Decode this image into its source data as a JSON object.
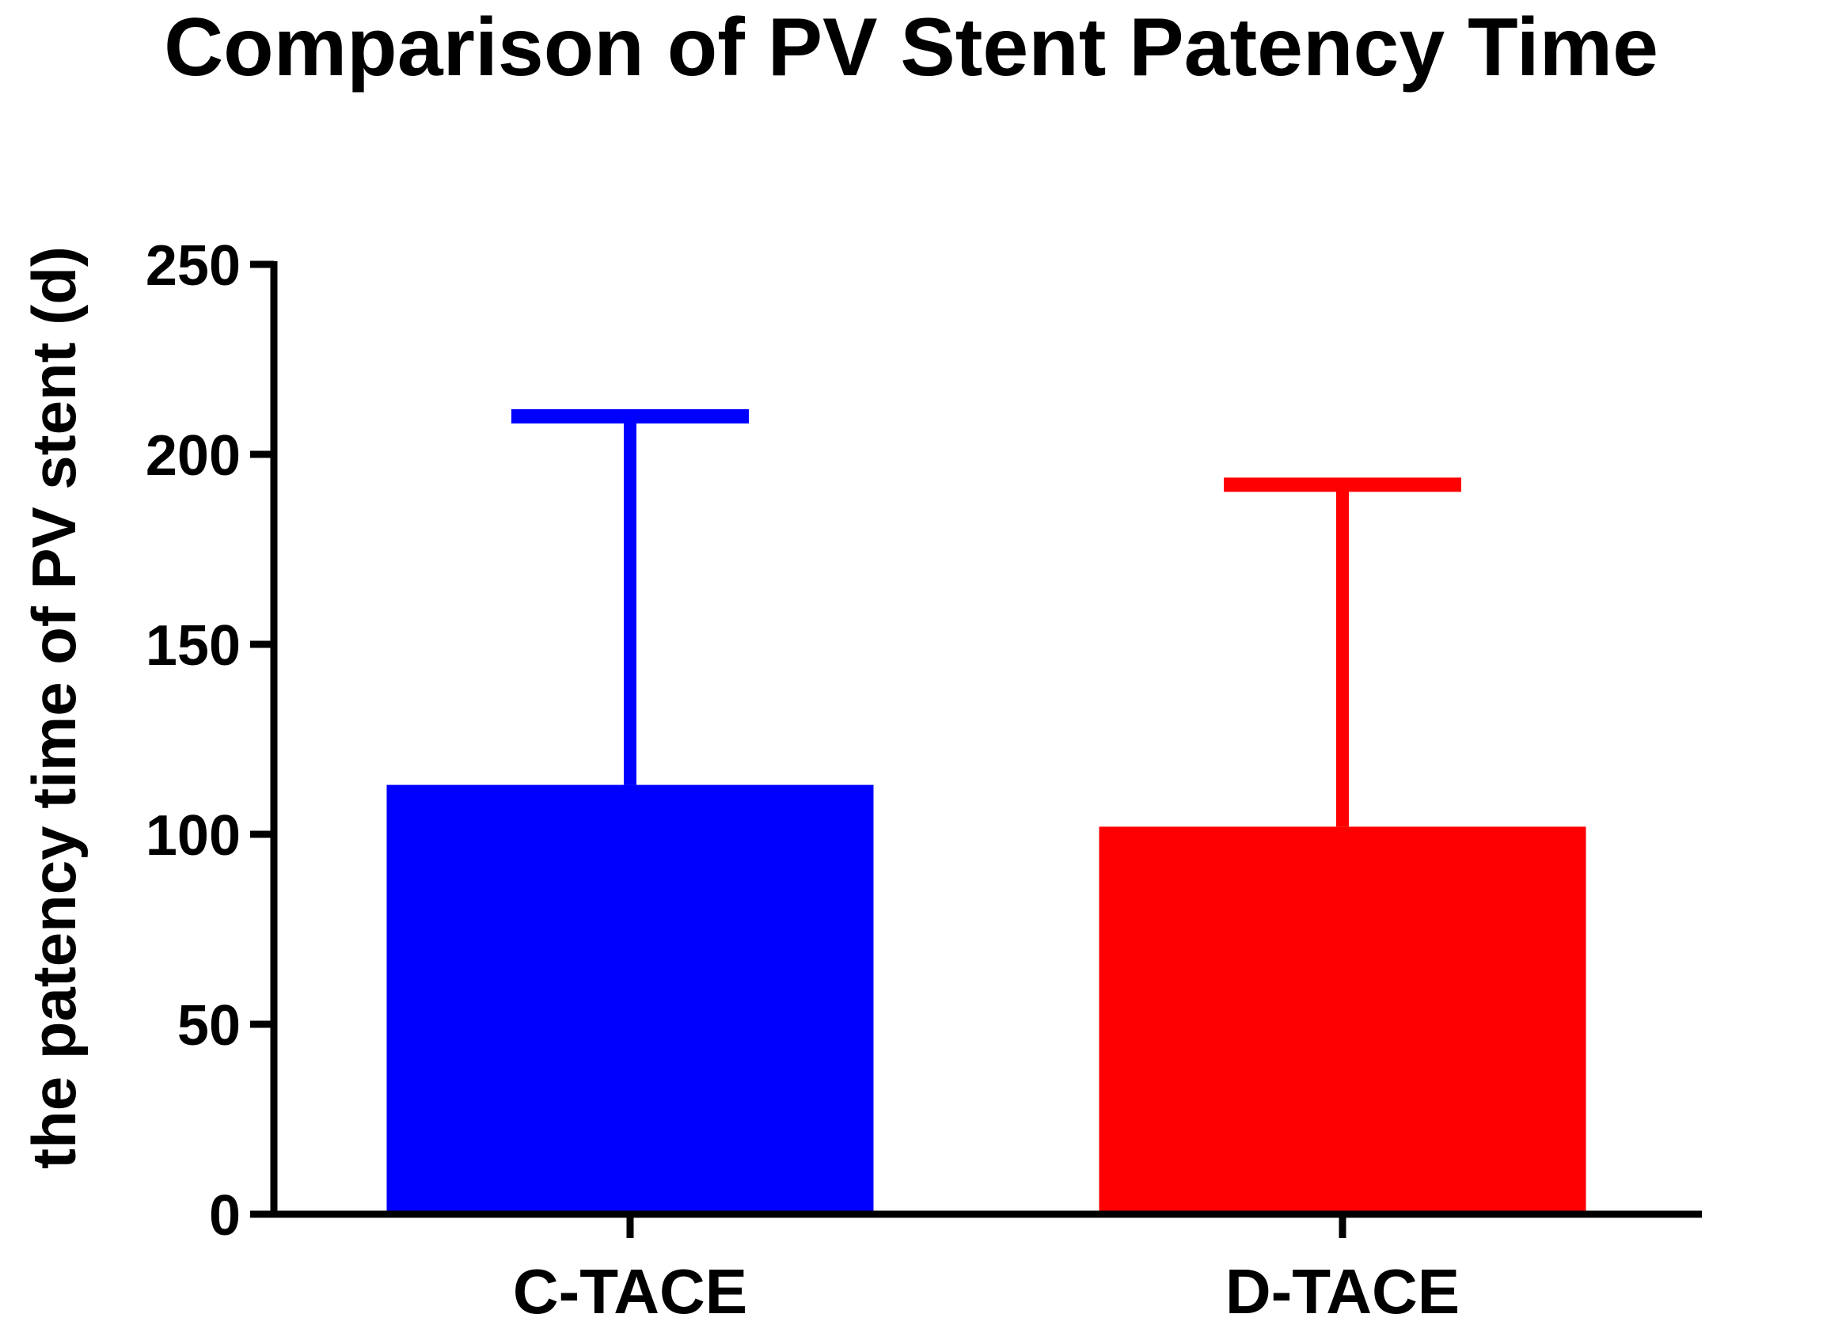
{
  "chart_data": {
    "type": "bar",
    "title": "Comparison of PV Stent Patency Time",
    "xlabel": "",
    "ylabel": "the patency time of PV stent (d)",
    "ylim": [
      0,
      250
    ],
    "yticks": [
      0,
      50,
      100,
      150,
      200,
      250
    ],
    "categories": [
      "C-TACE",
      "D-TACE"
    ],
    "values": [
      113,
      102
    ],
    "error_upper": [
      210,
      192
    ],
    "colors": [
      "#0000ff",
      "#ff0000"
    ],
    "grid": false,
    "legend": "none"
  }
}
